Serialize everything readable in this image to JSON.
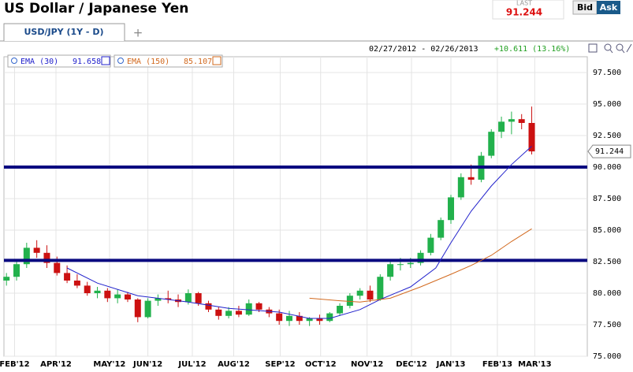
{
  "header": {
    "title": "US Dollar / Japanese Yen",
    "last_label": "LAST",
    "last": "91.244",
    "bid": "Bid",
    "ask": "Ask"
  },
  "tab": "USD/JPY (1Y - D)",
  "range": "02/27/2012 - 02/26/2013",
  "change": "+10.611 (13.16%)",
  "chart_data": {
    "type": "candlestick",
    "xlim": [
      -0.25,
      57.5
    ],
    "xticks": [
      {
        "value": 0.8,
        "label": "FEB'12"
      },
      {
        "value": 4.9,
        "label": "APR'12"
      },
      {
        "value": 10.2,
        "label": "MAY'12"
      },
      {
        "value": 14.0,
        "label": "JUN'12"
      },
      {
        "value": 18.4,
        "label": "JUL'12"
      },
      {
        "value": 22.5,
        "label": "AUG'12"
      },
      {
        "value": 27.1,
        "label": "SEP'12"
      },
      {
        "value": 31.1,
        "label": "OCT'12"
      },
      {
        "value": 35.7,
        "label": "NOV'12"
      },
      {
        "value": 40.1,
        "label": "DEC'12"
      },
      {
        "value": 44.0,
        "label": "JAN'13"
      },
      {
        "value": 48.6,
        "label": "FEB'13"
      },
      {
        "value": 52.3,
        "label": "MAR'13"
      }
    ],
    "ylim": [
      75,
      98.75
    ],
    "yticks": [
      {
        "value": 75,
        "label": "75.000"
      },
      {
        "value": 77.5,
        "label": "77.500"
      },
      {
        "value": 80,
        "label": "80.000"
      },
      {
        "value": 82.5,
        "label": "82.500"
      },
      {
        "value": 85,
        "label": "85.000"
      },
      {
        "value": 87.5,
        "label": "87.500"
      },
      {
        "value": 90,
        "label": "90.000"
      },
      {
        "value": 92.5,
        "label": "92.500"
      },
      {
        "value": 95,
        "label": "95.000"
      },
      {
        "value": 97.5,
        "label": "97.500"
      }
    ],
    "grid": true,
    "up_color": "#22b14c",
    "down_color": "#cc1111",
    "candles": {
      "x": [
        0,
        1,
        2,
        3,
        4,
        5,
        6,
        7,
        8,
        9,
        10,
        11,
        12,
        13,
        14,
        15,
        16,
        17,
        18,
        19,
        20,
        21,
        22,
        23,
        24,
        25,
        26,
        27,
        28,
        29,
        30,
        31,
        32,
        33,
        34,
        35,
        36,
        37,
        38,
        39,
        40,
        41,
        42,
        43,
        44,
        45,
        46,
        47,
        48,
        49,
        50,
        51,
        52
      ],
      "open": [
        81.0,
        81.3,
        82.3,
        83.6,
        83.2,
        82.4,
        81.6,
        81.0,
        80.6,
        80.0,
        80.2,
        79.6,
        79.9,
        79.5,
        78.1,
        79.4,
        79.6,
        79.5,
        79.3,
        80.0,
        79.2,
        78.7,
        78.2,
        78.6,
        78.3,
        79.2,
        78.7,
        78.4,
        77.8,
        78.2,
        77.8,
        78.0,
        77.8,
        78.4,
        79.0,
        79.8,
        80.2,
        79.5,
        81.3,
        82.3,
        82.3,
        82.4,
        83.2,
        84.4,
        85.8,
        87.6,
        89.2,
        89.0,
        90.9,
        92.8,
        93.6,
        93.8,
        93.5
      ],
      "high": [
        81.6,
        82.6,
        84.0,
        84.2,
        83.8,
        82.9,
        82.2,
        81.5,
        80.9,
        80.5,
        80.4,
        80.3,
        80.1,
        79.6,
        79.6,
        79.9,
        80.2,
        79.9,
        80.3,
        80.1,
        79.4,
        78.9,
        78.9,
        79.0,
        79.5,
        79.3,
        78.9,
        78.7,
        78.6,
        78.5,
        78.1,
        78.3,
        78.5,
        79.2,
        80.0,
        80.4,
        80.6,
        81.5,
        82.5,
        82.8,
        82.8,
        83.4,
        84.7,
        86.0,
        87.8,
        89.5,
        90.2,
        91.2,
        93.0,
        94.0,
        94.4,
        94.2,
        94.8
      ],
      "low": [
        80.6,
        81.0,
        82.0,
        82.8,
        82.0,
        81.4,
        80.8,
        80.4,
        79.8,
        79.6,
        79.3,
        79.2,
        79.3,
        77.7,
        78.0,
        79.0,
        79.2,
        78.9,
        79.1,
        79.0,
        78.5,
        77.9,
        78.0,
        78.1,
        78.2,
        78.5,
        78.1,
        77.5,
        77.4,
        77.5,
        77.4,
        77.5,
        77.7,
        78.2,
        78.8,
        79.5,
        79.3,
        79.4,
        81.0,
        81.8,
        82.0,
        82.2,
        83.0,
        84.2,
        85.5,
        87.4,
        88.6,
        88.8,
        90.7,
        92.3,
        92.6,
        93.0,
        91.0
      ],
      "close": [
        81.3,
        82.3,
        83.6,
        83.2,
        82.4,
        81.6,
        81.0,
        80.6,
        80.0,
        80.2,
        79.6,
        79.9,
        79.5,
        78.1,
        79.4,
        79.6,
        79.5,
        79.3,
        80.0,
        79.2,
        78.7,
        78.2,
        78.6,
        78.3,
        79.2,
        78.7,
        78.4,
        77.8,
        78.2,
        77.8,
        78.0,
        77.8,
        78.4,
        79.0,
        79.8,
        80.2,
        79.5,
        81.3,
        82.3,
        82.3,
        82.4,
        83.2,
        84.4,
        85.8,
        87.6,
        89.2,
        89.0,
        90.9,
        92.8,
        93.6,
        93.8,
        93.5,
        91.244
      ]
    },
    "series": [
      {
        "name": "EMA (30)",
        "color": "#2222cc",
        "x": [
          6,
          9,
          13,
          18,
          22,
          27,
          30,
          32,
          35,
          37,
          40,
          42.5,
          44,
          46,
          48,
          50,
          52
        ],
        "values": [
          82.0,
          80.8,
          79.8,
          79.3,
          78.8,
          78.5,
          78.0,
          78.0,
          78.7,
          79.5,
          80.5,
          82.0,
          84.0,
          86.5,
          88.5,
          90.2,
          91.658
        ]
      },
      {
        "name": "EMA (150)",
        "color": "#d2691e",
        "x": [
          30,
          33,
          35,
          38,
          41,
          44,
          46,
          48,
          50,
          52
        ],
        "values": [
          79.6,
          79.4,
          79.3,
          79.6,
          80.5,
          81.5,
          82.2,
          83.0,
          84.1,
          85.107
        ]
      }
    ],
    "levels": [
      90.0,
      82.6
    ]
  }
}
